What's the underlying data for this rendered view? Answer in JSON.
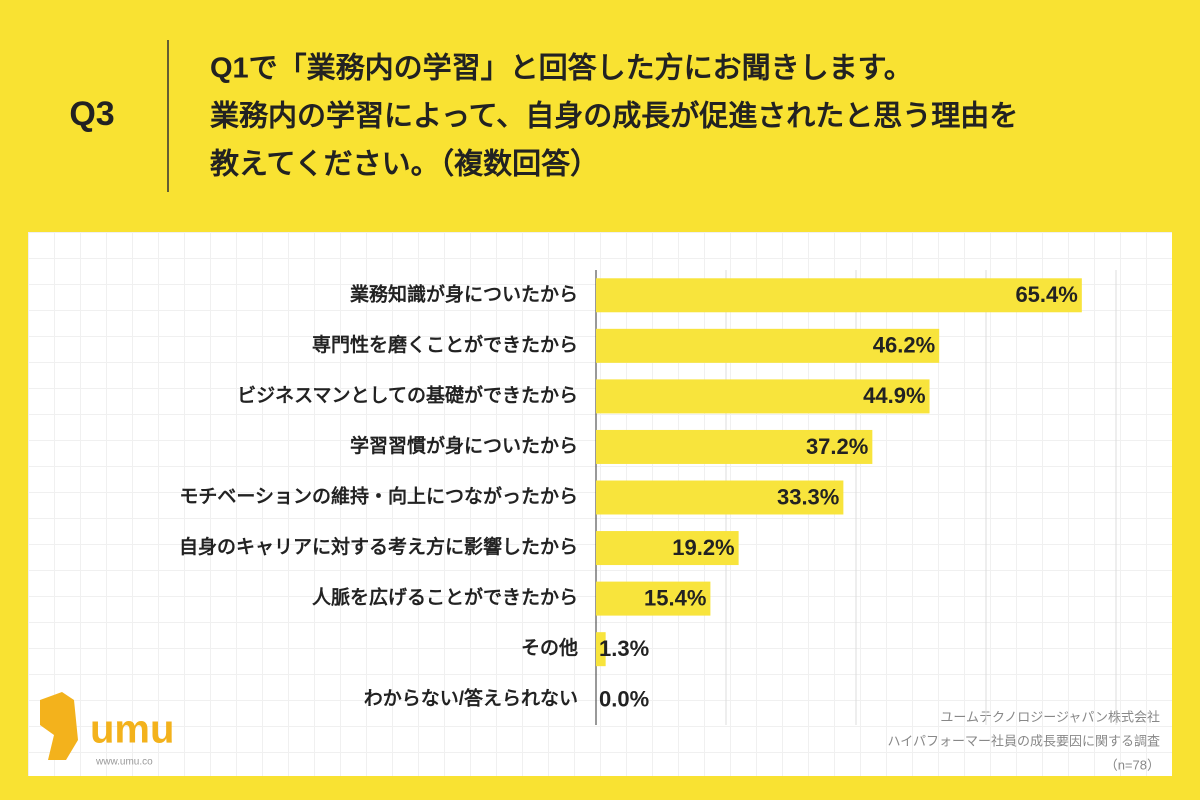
{
  "header": {
    "label": "Q3",
    "question": [
      "Q1で「業務内の学習」と回答した方にお聞きします。",
      "業務内の学習によって、自身の成長が促進されたと思う理由を",
      "教えてください。（複数回答）"
    ]
  },
  "chart_data": {
    "type": "bar",
    "orientation": "horizontal",
    "categories": [
      "業務知識が身についたから",
      "専門性を磨くことができたから",
      "ビジネスマンとしての基礎ができたから",
      "学習習慣が身についたから",
      "モチベーションの維持・向上につながったから",
      "自身のキャリアに対する考え方に影響したから",
      "人脈を広げることができたから",
      "その他",
      "わからない/答えられない"
    ],
    "values": [
      65.4,
      46.2,
      44.9,
      37.2,
      33.3,
      19.2,
      15.4,
      1.3,
      0.0
    ],
    "value_labels": [
      "65.4%",
      "46.2%",
      "44.9%",
      "37.2%",
      "33.3%",
      "19.2%",
      "15.4%",
      "1.3%",
      "0.0%"
    ],
    "color": "#f8e43c",
    "xlim": [
      0,
      70
    ],
    "grid": true
  },
  "source": [
    "ユームテクノロジージャパン株式会社",
    "ハイパフォーマー社員の成長要因に関する調査",
    "（n=78）"
  ],
  "logo": {
    "name": "umu",
    "url": "www.umu.co"
  }
}
